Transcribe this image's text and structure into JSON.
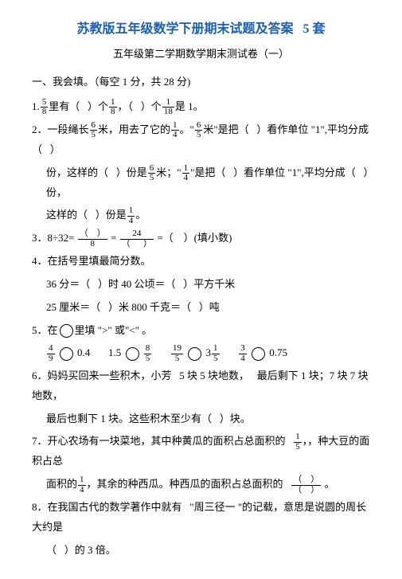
{
  "title_main": "苏教版五年级数学下册期末试题及答案",
  "title_count": "5 套",
  "subtitle": "五年级第二学期数学期末测试卷（一）",
  "section1": "一、我会填。（每空 1 分，共 28 分)",
  "q1a": "里有（",
  "q1b": "）个",
  "q1c": "，（",
  "q1d": "）个",
  "q1e": "是 1。",
  "q2a": "2．一段绳长",
  "q2b": "米，用去了它的",
  "q2c": "。",
  "q2d": "米\"是把（",
  "q2e": "）看作单位 \"1\",平均分成（",
  "q2f": "）",
  "q2g": "份，这样的（",
  "q2h": "）份是",
  "q2i": "米；\"",
  "q2j": "\"是把（",
  "q2k": "）看作单位 \"1\",平均分成（",
  "q2l": "）份，",
  "q2m": "这样的（",
  "q2n": "）份是",
  "q2o": "。",
  "q3a": "3．8÷32=",
  "q3b": "=",
  "q3c": "=（",
  "q3d": "）(填小数)",
  "q4": "4．在括号里填最简分数。",
  "q4a": "36 分＝（",
  "q4b": "）时  40 公顷＝（",
  "q4c": "）平方千米",
  "q4d": "25 厘米＝（",
  "q4e": "）米  800 千克＝（",
  "q4f": "）吨",
  "q5a": "5．在",
  "q5b": "里填 \">\" 或\"<\" 。",
  "q5_n1": "0.4",
  "q5_n2": "1.5",
  "q5_n3": "3",
  "q5_n4": "0.75",
  "q6a": "6．妈妈买回来一些积木，小芳",
  "q6b": "5 块 5 块地数，",
  "q6c": "最后剩下 1 块；7 块 7 块地数，",
  "q6d": "最后也剩下 1 块。这些积木至少有（",
  "q6e": "）块。",
  "q7a": "7．开心农场有一块菜地，其中种黄瓜的面积占总面积的",
  "q7b": "，种大豆的面积占总",
  "q7c": "面积的",
  "q7d": "，其余的种西瓜。种西瓜的面积占总面积的",
  "q7e": "。",
  "q8a": "8．在我国古代的数学著作中就有",
  "q8b": "  \"周三径一 \"的记载，意思是说圆的周长大约是",
  "q8c": "（",
  "q8d": "）的 3 倍。"
}
